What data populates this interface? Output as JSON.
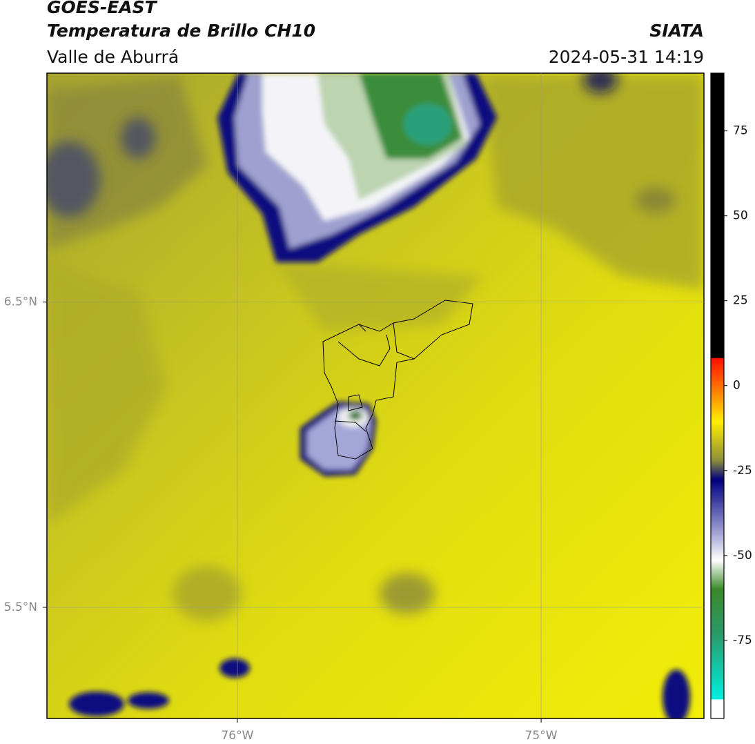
{
  "header": {
    "title": "GOES-EAST",
    "subtitle": "Temperatura de Brillo CH10",
    "region": "Valle de Aburrá",
    "source": "SIATA",
    "timestamp": "2024-05-31 14:19"
  },
  "map": {
    "lat_lim": [
      5.136,
      7.25
    ],
    "lon_lim": [
      -76.627,
      -74.464
    ],
    "lat_ticks": [
      {
        "value": 6.5,
        "label": "6.5°N"
      },
      {
        "value": 5.5,
        "label": "5.5°N"
      }
    ],
    "lon_ticks": [
      {
        "value": -76,
        "label": "76°W"
      },
      {
        "value": -75,
        "label": "75°W"
      }
    ],
    "grid": true
  },
  "colorbar": {
    "lim": [
      -98,
      92
    ],
    "ticks": [
      75,
      50,
      25,
      0,
      -25,
      -50,
      -75
    ]
  }
}
